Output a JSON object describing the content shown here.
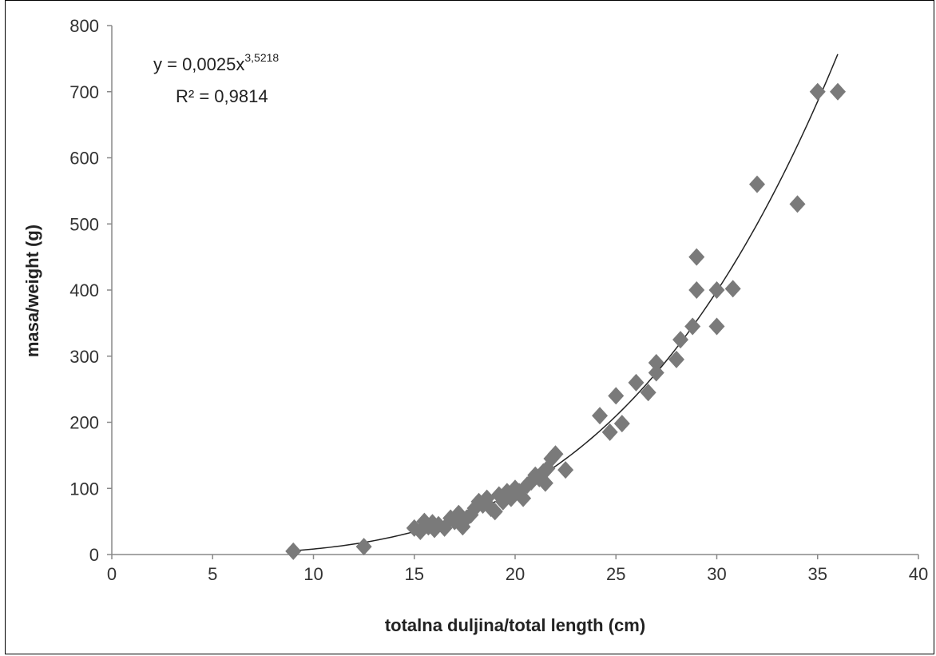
{
  "chart_data": {
    "type": "scatter",
    "xlabel": "totalna duljina/total length (cm)",
    "ylabel": "masa/weight (g)",
    "xlim": [
      0,
      40
    ],
    "ylim": [
      0,
      800
    ],
    "x_ticks": [
      0,
      5,
      10,
      15,
      20,
      25,
      30,
      35,
      40
    ],
    "y_ticks": [
      0,
      100,
      200,
      300,
      400,
      500,
      600,
      700,
      800
    ],
    "grid": false,
    "marker": "diamond",
    "marker_color": "#7a7a7a",
    "trendline": {
      "type": "power",
      "a": 0.0025,
      "b": 3.5218,
      "x_range": [
        9,
        36
      ],
      "color": "#222222",
      "equation_main": "y = 0,0025x",
      "equation_exponent": "3,5218",
      "r2_label": "R² = 0,9814"
    },
    "points": [
      [
        9,
        5
      ],
      [
        12.5,
        12
      ],
      [
        15,
        40
      ],
      [
        15.3,
        35
      ],
      [
        15.5,
        50
      ],
      [
        15.7,
        42
      ],
      [
        15.9,
        48
      ],
      [
        16,
        38
      ],
      [
        16.2,
        45
      ],
      [
        16.5,
        40
      ],
      [
        16.8,
        55
      ],
      [
        17,
        50
      ],
      [
        17.2,
        62
      ],
      [
        17.4,
        42
      ],
      [
        17.6,
        55
      ],
      [
        17.8,
        60
      ],
      [
        18,
        70
      ],
      [
        18.2,
        80
      ],
      [
        18.4,
        75
      ],
      [
        18.6,
        85
      ],
      [
        18.8,
        70
      ],
      [
        19,
        65
      ],
      [
        19.2,
        90
      ],
      [
        19.4,
        80
      ],
      [
        19.6,
        95
      ],
      [
        19.8,
        85
      ],
      [
        20,
        100
      ],
      [
        20.2,
        95
      ],
      [
        20.4,
        85
      ],
      [
        20.6,
        105
      ],
      [
        20.8,
        110
      ],
      [
        21,
        120
      ],
      [
        21.2,
        115
      ],
      [
        21.4,
        125
      ],
      [
        21.5,
        108
      ],
      [
        21.6,
        130
      ],
      [
        21.8,
        145
      ],
      [
        22,
        152
      ],
      [
        22.5,
        128
      ],
      [
        24.2,
        210
      ],
      [
        24.7,
        185
      ],
      [
        25,
        240
      ],
      [
        25.3,
        198
      ],
      [
        26,
        260
      ],
      [
        26.6,
        245
      ],
      [
        27,
        290
      ],
      [
        27,
        275
      ],
      [
        28,
        295
      ],
      [
        28.2,
        325
      ],
      [
        28.8,
        345
      ],
      [
        29,
        450
      ],
      [
        29,
        400
      ],
      [
        30,
        400
      ],
      [
        30,
        345
      ],
      [
        30.8,
        402
      ],
      [
        32,
        560
      ],
      [
        34,
        530
      ],
      [
        35,
        700
      ],
      [
        36,
        700
      ]
    ]
  }
}
